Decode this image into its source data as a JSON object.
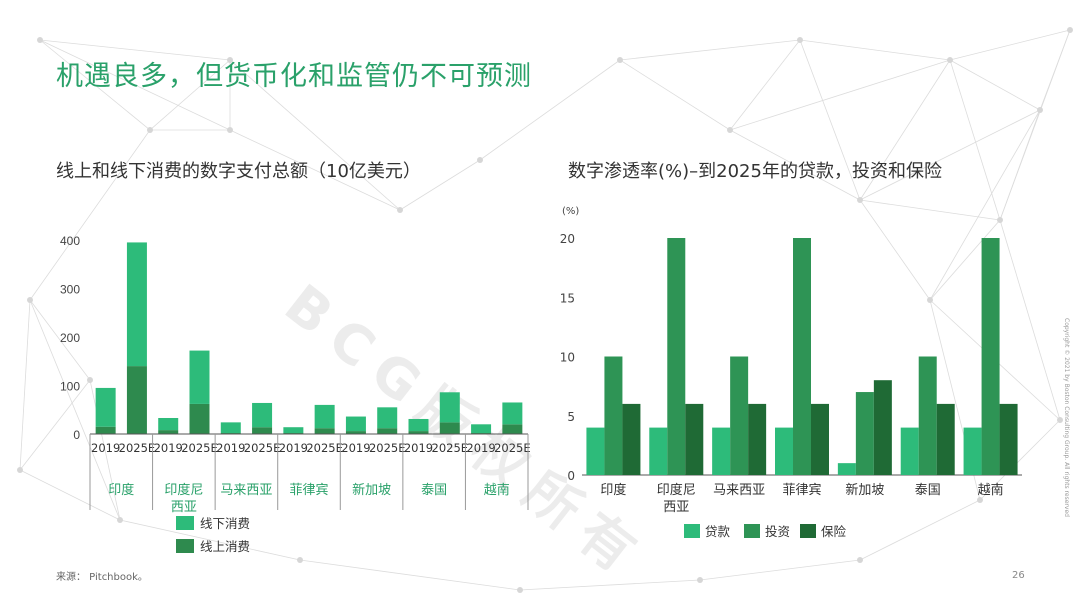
{
  "title": "机遇良多，但货币化和监管仍不可预测",
  "source": "来源： Pitchbook。",
  "page_number": "26",
  "copyright": "Copyright © 2021 by Boston Consulting Group. All rights reserved",
  "watermark": "BCG版权所有",
  "colors": {
    "accent": "#2aa16a",
    "c1": "#2dbb7a",
    "c2": "#2e9455",
    "c3": "#1f6a35"
  },
  "chart_data": [
    {
      "type": "bar",
      "stacked": true,
      "title": "线上和线下消费的数字支付总额（10亿美元）",
      "categories": [
        "2019",
        "2025E",
        "2019",
        "2025E",
        "2019",
        "2025E",
        "2019",
        "2025E",
        "2019",
        "2025E",
        "2019",
        "2025E",
        "2019",
        "2025E"
      ],
      "groups": [
        "印度",
        "印度尼西亚",
        "马来西亚",
        "菲律宾",
        "新加坡",
        "泰国",
        "越南"
      ],
      "group_lines": [
        [
          "印度"
        ],
        [
          "印度尼",
          "西亚"
        ],
        [
          "马来西亚"
        ],
        [
          "菲律宾"
        ],
        [
          "新加坡"
        ],
        [
          "泰国"
        ],
        [
          "越南"
        ]
      ],
      "series": [
        {
          "name": "线下消费",
          "color": "#2dbb7a",
          "values": [
            80,
            255,
            25,
            110,
            22,
            50,
            12,
            48,
            30,
            43,
            25,
            62,
            18,
            45
          ]
        },
        {
          "name": "线上消费",
          "color": "#2e8a4e",
          "values": [
            15,
            140,
            8,
            62,
            2,
            14,
            2,
            12,
            6,
            12,
            6,
            24,
            2,
            20
          ]
        }
      ],
      "yticks": [
        "0",
        "100",
        "200",
        "300",
        "400"
      ],
      "ylim": [
        0,
        400
      ]
    },
    {
      "type": "bar",
      "title": "数字渗透率(%)–到2025年的贷款，投资和保险",
      "unit_label": "(%)",
      "categories": [
        "印度",
        "印度尼西亚",
        "马来西亚",
        "菲律宾",
        "新加坡",
        "泰国",
        "越南"
      ],
      "category_lines": [
        [
          "印度"
        ],
        [
          "印度尼",
          "西亚"
        ],
        [
          "马来西亚"
        ],
        [
          "菲律宾"
        ],
        [
          "新加坡"
        ],
        [
          "泰国"
        ],
        [
          "越南"
        ]
      ],
      "series": [
        {
          "name": "贷款",
          "color": "#2dbb7a",
          "values": [
            4,
            4,
            4,
            4,
            1,
            4,
            4
          ]
        },
        {
          "name": "投资",
          "color": "#2e9455",
          "values": [
            10,
            20,
            10,
            20,
            7,
            10,
            20
          ]
        },
        {
          "name": "保险",
          "color": "#1f6a35",
          "values": [
            6,
            6,
            6,
            6,
            8,
            6,
            6
          ]
        }
      ],
      "yticks": [
        "0",
        "5",
        "10",
        "15",
        "20"
      ],
      "ylim": [
        0,
        20
      ]
    }
  ]
}
